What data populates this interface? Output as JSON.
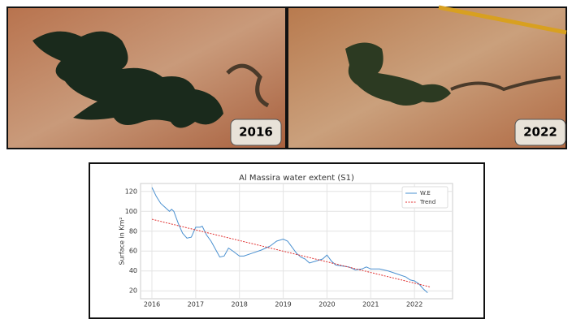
{
  "images": [
    {
      "label": "2016"
    },
    {
      "label": "2022"
    }
  ],
  "chart_data": {
    "type": "line",
    "title": "Al Massira water extent (S1)",
    "y_label": "Surface in Km²",
    "xlim": [
      2015.74,
      2022.87
    ],
    "xticks": [
      2016,
      2017,
      2018,
      2019,
      2020,
      2021,
      2022
    ],
    "ylim": [
      12,
      128
    ],
    "yticks": [
      20,
      40,
      60,
      80,
      100,
      120
    ],
    "grid": true,
    "legend": "upper-right",
    "series": [
      {
        "name": "W.E",
        "color": "#4a90d0",
        "style": "solid",
        "x": [
          2016.0,
          2016.1,
          2016.2,
          2016.3,
          2016.4,
          2016.45,
          2016.5,
          2016.6,
          2016.7,
          2016.8,
          2016.9,
          2017.0,
          2017.1,
          2017.15,
          2017.25,
          2017.35,
          2017.45,
          2017.55,
          2017.65,
          2017.75,
          2017.85,
          2018.0,
          2018.1,
          2018.3,
          2018.5,
          2018.7,
          2018.85,
          2019.0,
          2019.1,
          2019.2,
          2019.3,
          2019.4,
          2019.5,
          2019.6,
          2019.75,
          2019.9,
          2020.0,
          2020.1,
          2020.2,
          2020.35,
          2020.5,
          2020.65,
          2020.8,
          2020.9,
          2021.0,
          2021.2,
          2021.4,
          2021.6,
          2021.8,
          2021.9,
          2022.0,
          2022.1,
          2022.2,
          2022.3
        ],
        "values": [
          124,
          115,
          108,
          104,
          100,
          102,
          100,
          88,
          78,
          73,
          74,
          84,
          84,
          85,
          76,
          70,
          62,
          54,
          55,
          63,
          60,
          55,
          55,
          58,
          61,
          65,
          70,
          72,
          70,
          64,
          58,
          54,
          52,
          48,
          50,
          52,
          56,
          50,
          46,
          45,
          44,
          41,
          42,
          44,
          42,
          42,
          40,
          37,
          34,
          31,
          30,
          27,
          22,
          18
        ]
      },
      {
        "name": "Trend",
        "color": "#e03030",
        "style": "dotted",
        "x": [
          2016.0,
          2022.35
        ],
        "values": [
          92,
          24
        ]
      }
    ]
  }
}
